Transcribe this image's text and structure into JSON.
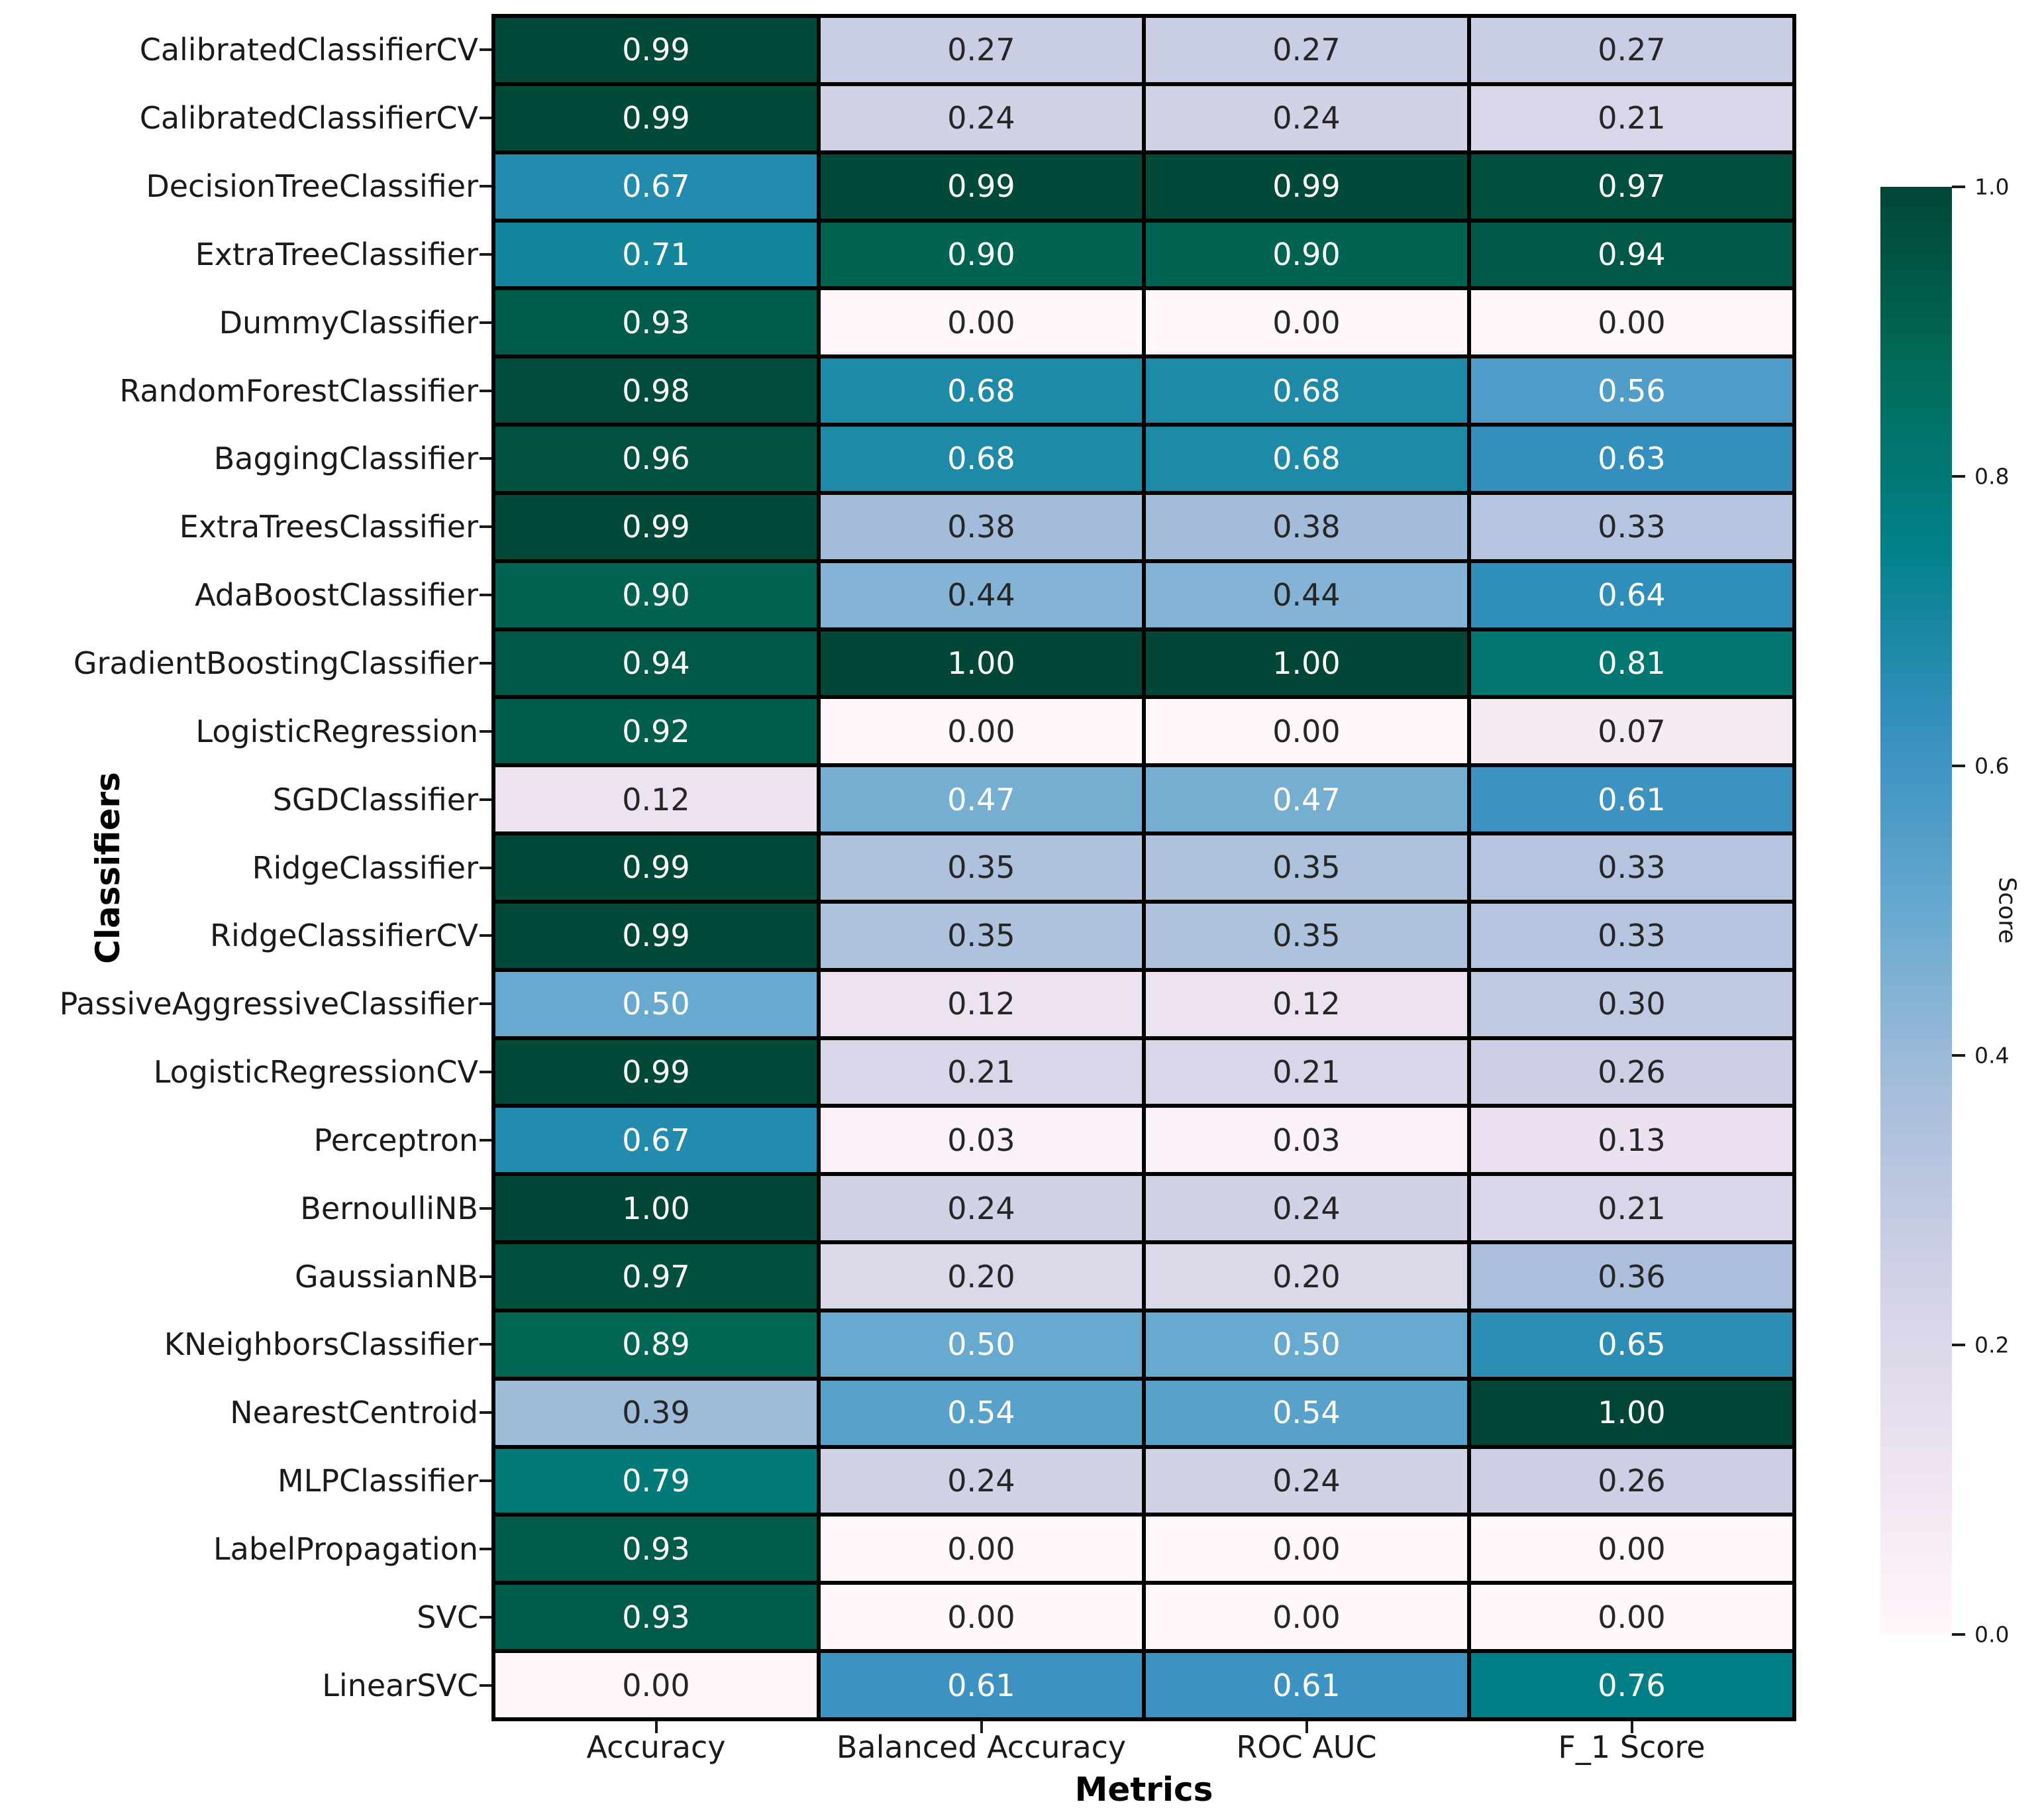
{
  "figure": {
    "background": "#ffffff",
    "text_color": "#1a1a1a",
    "grid_line_color": "#000000",
    "annot_dark_text": "#262626",
    "annot_light_text": "#ffffff"
  },
  "chart_data": {
    "type": "heatmap",
    "title": "",
    "xlabel": "Metrics",
    "ylabel": "Classifiers",
    "columns": [
      "Accuracy",
      "Balanced Accuracy",
      "ROC AUC",
      "F_1 Score"
    ],
    "rows": [
      "CalibratedClassifierCV",
      "CalibratedClassifierCV",
      "DecisionTreeClassifier",
      "ExtraTreeClassifier",
      "DummyClassifier",
      "RandomForestClassifier",
      "BaggingClassifier",
      "ExtraTreesClassifier",
      "AdaBoostClassifier",
      "GradientBoostingClassifier",
      "LogisticRegression",
      "SGDClassifier",
      "RidgeClassifier",
      "RidgeClassifierCV",
      "PassiveAggressiveClassifier",
      "LogisticRegressionCV",
      "Perceptron",
      "BernoulliNB",
      "GaussianNB",
      "KNeighborsClassifier",
      "NearestCentroid",
      "MLPClassifier",
      "LabelPropagation",
      "SVC",
      "LinearSVC"
    ],
    "values": [
      [
        0.99,
        0.27,
        0.27,
        0.27
      ],
      [
        0.99,
        0.24,
        0.24,
        0.21
      ],
      [
        0.67,
        0.99,
        0.99,
        0.97
      ],
      [
        0.71,
        0.9,
        0.9,
        0.94
      ],
      [
        0.93,
        0.0,
        0.0,
        0.0
      ],
      [
        0.98,
        0.68,
        0.68,
        0.56
      ],
      [
        0.96,
        0.68,
        0.68,
        0.63
      ],
      [
        0.99,
        0.38,
        0.38,
        0.33
      ],
      [
        0.9,
        0.44,
        0.44,
        0.64
      ],
      [
        0.94,
        1.0,
        1.0,
        0.81
      ],
      [
        0.92,
        0.0,
        0.0,
        0.07
      ],
      [
        0.12,
        0.47,
        0.47,
        0.61
      ],
      [
        0.99,
        0.35,
        0.35,
        0.33
      ],
      [
        0.99,
        0.35,
        0.35,
        0.33
      ],
      [
        0.5,
        0.12,
        0.12,
        0.3
      ],
      [
        0.99,
        0.21,
        0.21,
        0.26
      ],
      [
        0.67,
        0.03,
        0.03,
        0.13
      ],
      [
        1.0,
        0.24,
        0.24,
        0.21
      ],
      [
        0.97,
        0.2,
        0.2,
        0.36
      ],
      [
        0.89,
        0.5,
        0.5,
        0.65
      ],
      [
        0.39,
        0.54,
        0.54,
        1.0
      ],
      [
        0.79,
        0.24,
        0.24,
        0.26
      ],
      [
        0.93,
        0.0,
        0.0,
        0.0
      ],
      [
        0.93,
        0.0,
        0.0,
        0.0
      ],
      [
        0.0,
        0.61,
        0.61,
        0.76
      ]
    ],
    "annotation_format": "0.00",
    "value_range": [
      0,
      1
    ],
    "colormap": "PuBuGn",
    "colormap_stops": [
      "#fff7fb",
      "#ece2f0",
      "#d0d1e6",
      "#a6bddb",
      "#67a9cf",
      "#3690c0",
      "#02818a",
      "#016c59",
      "#014636"
    ],
    "colorbar": {
      "label": "Score",
      "tick_labels": [
        "1.0",
        "0.8",
        "0.6",
        "0.4",
        "0.2",
        "0.0"
      ],
      "tick_values": [
        1.0,
        0.8,
        0.6,
        0.4,
        0.2,
        0.0
      ],
      "position": "right"
    },
    "legend": "none",
    "grid": "cell-borders-black"
  }
}
